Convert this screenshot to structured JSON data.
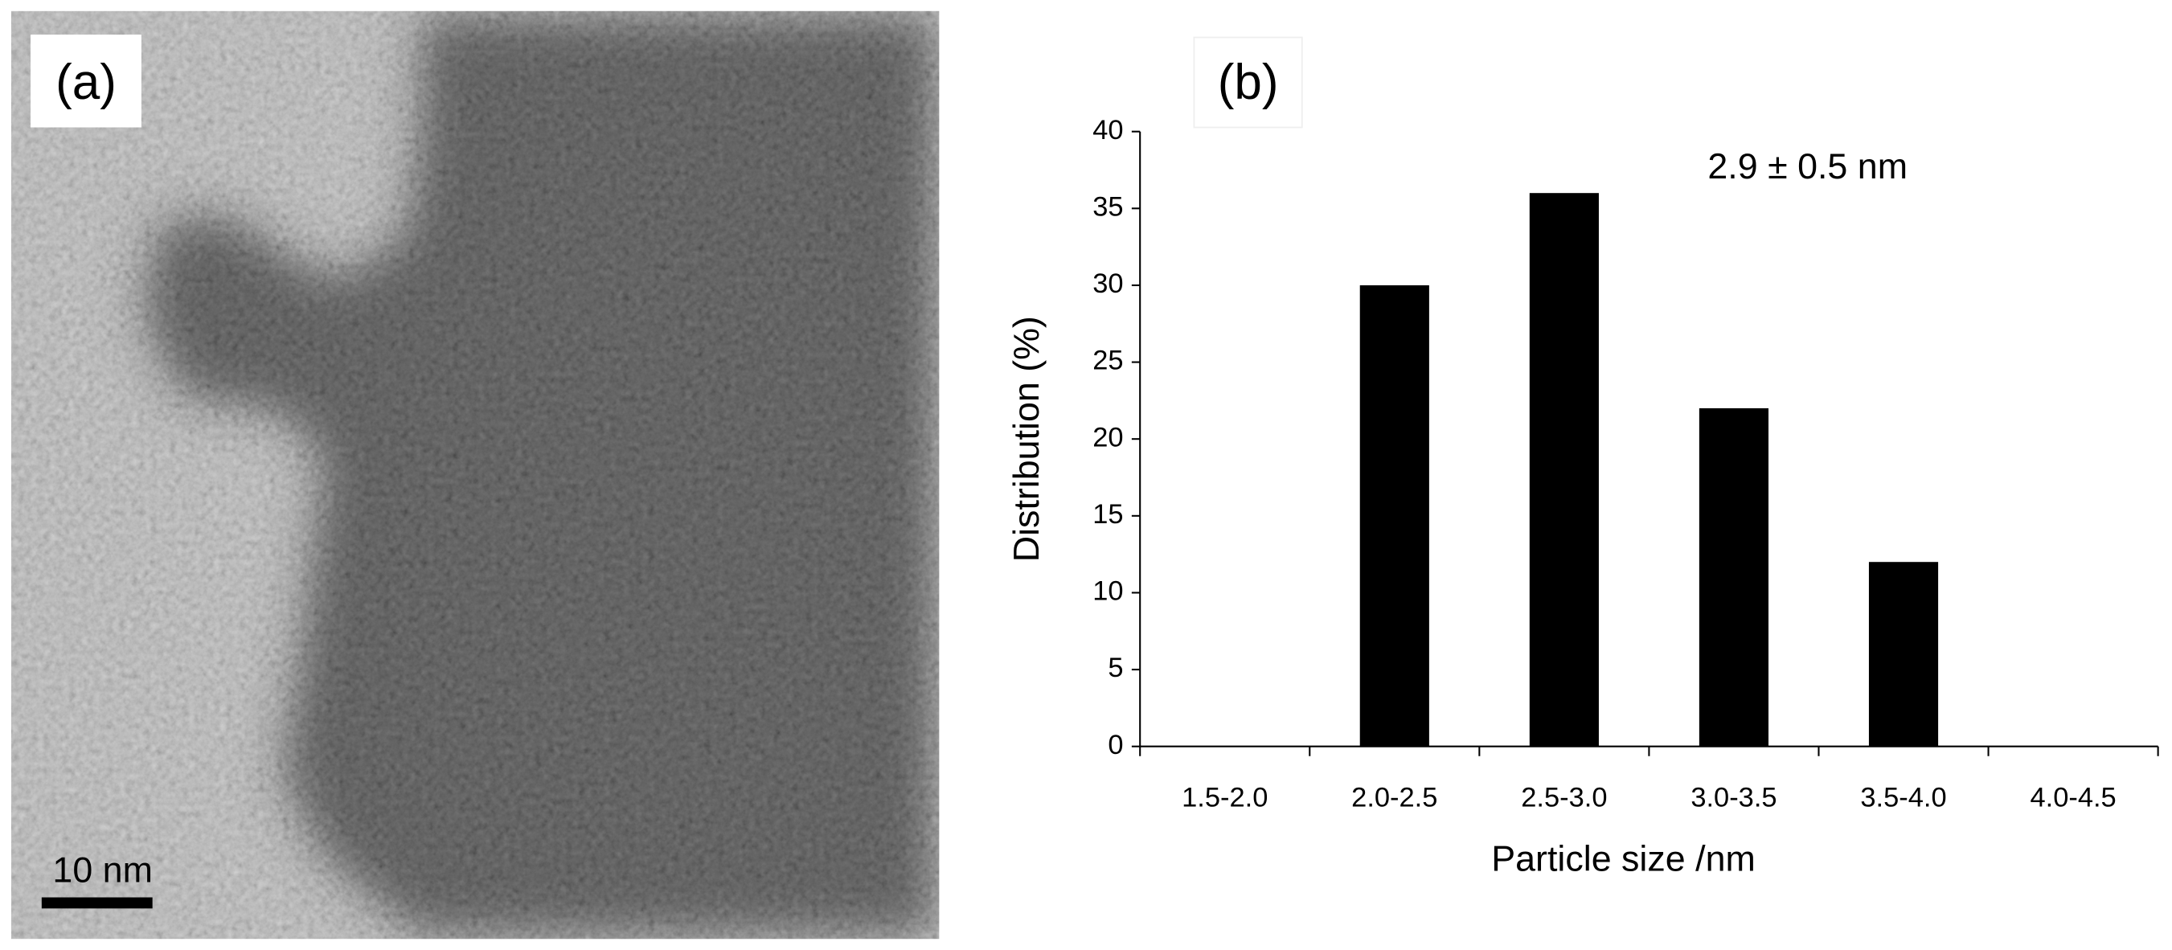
{
  "panel_a": {
    "label": "(a)",
    "scale_bar": "10 nm"
  },
  "chart_data": {
    "type": "bar",
    "panel_label": "(b)",
    "annotation": "2.9 ± 0.5 nm",
    "x_label": "Particle size /nm",
    "y_label": "Distribution (%)",
    "categories": [
      "1.5-2.0",
      "2.0-2.5",
      "2.5-3.0",
      "3.0-3.5",
      "3.5-4.0",
      "4.0-4.5"
    ],
    "values": [
      0,
      30,
      36,
      22,
      12,
      0
    ],
    "color": "#000000",
    "ylim": [
      0,
      40
    ],
    "yticks": [
      0,
      5,
      10,
      15,
      20,
      25,
      30,
      35,
      40
    ],
    "grid": false
  }
}
